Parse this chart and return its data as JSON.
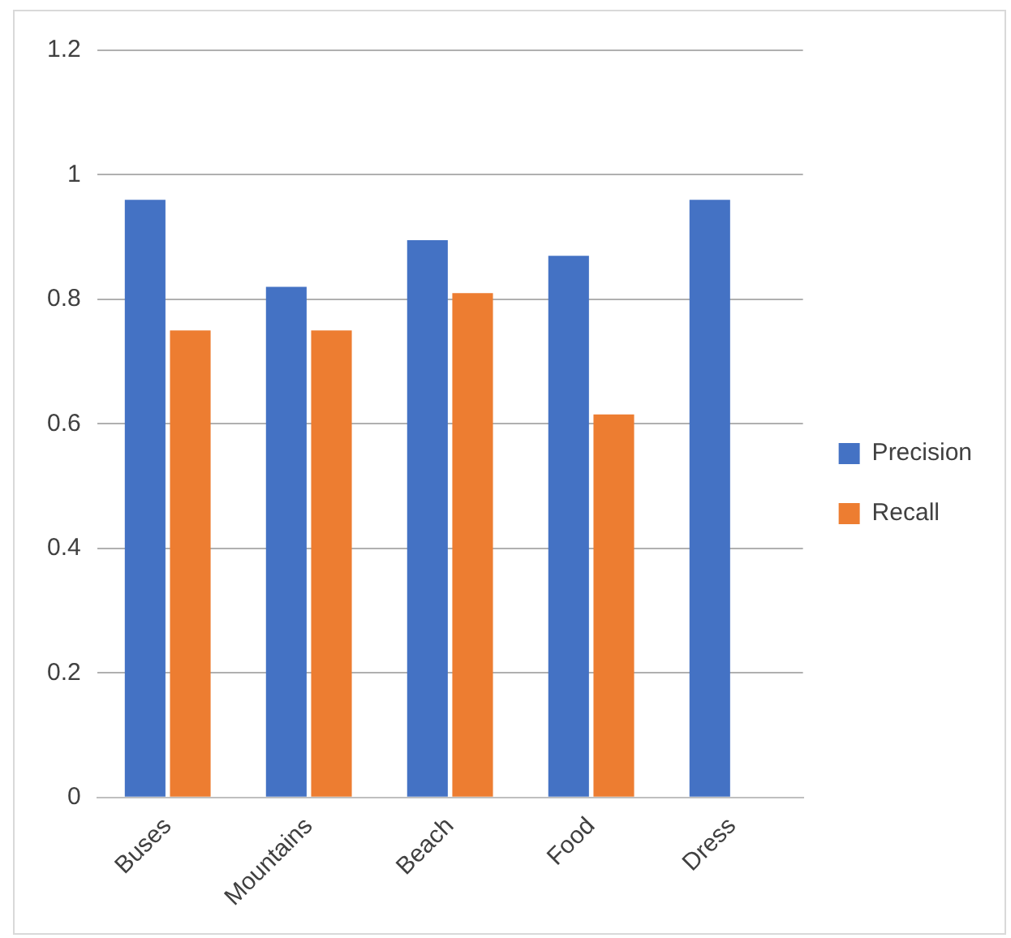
{
  "chart_data": {
    "type": "bar",
    "categories": [
      "Buses",
      "Mountains",
      "Beach",
      "Food",
      "Dress"
    ],
    "series": [
      {
        "name": "Precision",
        "color": "#4472c4",
        "values": [
          0.96,
          0.82,
          0.895,
          0.87,
          0.96
        ]
      },
      {
        "name": "Recall",
        "color": "#ed7d31",
        "values": [
          0.75,
          0.75,
          0.81,
          0.615,
          null
        ]
      }
    ],
    "ylim": [
      0,
      1.2
    ],
    "yticks": [
      0,
      {
        "value": 0.2,
        "label": "0.2"
      },
      {
        "value": 0.4,
        "label": "0.4"
      },
      {
        "value": 0.6,
        "label": "0.6"
      },
      {
        "value": 0.8,
        "label": "0.8"
      },
      1,
      {
        "value": 1.2,
        "label": "1.2"
      }
    ],
    "grid": "y",
    "legend": "right"
  }
}
